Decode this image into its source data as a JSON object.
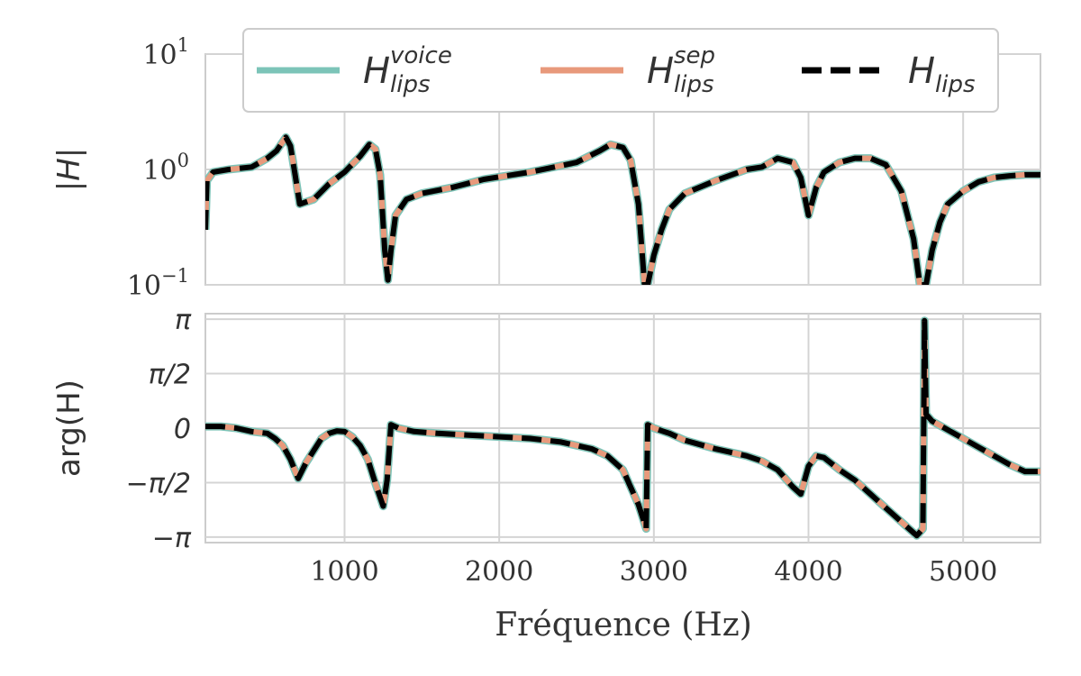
{
  "chart_data": [
    {
      "type": "line",
      "ylabel": "|H|",
      "yscale": "log",
      "xlim": [
        100,
        5500
      ],
      "ylim": [
        0.1,
        10
      ],
      "yticks": [
        0.1,
        1,
        10
      ],
      "yticklabels": [
        {
          "base": "10",
          "exp": "−1"
        },
        {
          "base": "10",
          "exp": "0"
        },
        {
          "base": "10",
          "exp": "1"
        }
      ],
      "xticks": [
        1000,
        2000,
        3000,
        4000,
        5000
      ],
      "grid": true,
      "legend": {
        "placement": "top",
        "entries": [
          {
            "main": "H",
            "sup": "voice",
            "sub": "lips",
            "color": "#7cc4b8",
            "style": "solid"
          },
          {
            "main": "H",
            "sup": "sep",
            "sub": "lips",
            "color": "#e8997b",
            "style": "solid"
          },
          {
            "main": "H",
            "sup": "",
            "sub": "lips",
            "color": "#000000",
            "style": "dashed"
          }
        ]
      },
      "series": [
        {
          "name": "H_lips (model)",
          "color": "#000000",
          "x": [
            100,
            110,
            150,
            250,
            400,
            500,
            560,
            620,
            650,
            680,
            710,
            800,
            900,
            1000,
            1100,
            1160,
            1200,
            1230,
            1260,
            1280,
            1300,
            1330,
            1400,
            1500,
            1700,
            1900,
            2200,
            2500,
            2650,
            2720,
            2800,
            2850,
            2900,
            2940,
            2960,
            3000,
            3050,
            3100,
            3200,
            3400,
            3600,
            3700,
            3800,
            3900,
            3950,
            4000,
            4050,
            4100,
            4200,
            4300,
            4400,
            4500,
            4600,
            4680,
            4720,
            4760,
            4800,
            4850,
            4900,
            5000,
            5100,
            5200,
            5300,
            5400,
            5500
          ],
          "y": [
            0.3,
            0.8,
            0.95,
            1.0,
            1.05,
            1.25,
            1.45,
            1.9,
            1.6,
            0.9,
            0.5,
            0.55,
            0.75,
            0.95,
            1.3,
            1.65,
            1.5,
            0.9,
            0.2,
            0.11,
            0.2,
            0.4,
            0.55,
            0.62,
            0.7,
            0.82,
            0.95,
            1.15,
            1.45,
            1.65,
            1.55,
            1.2,
            0.5,
            0.1,
            0.1,
            0.18,
            0.3,
            0.45,
            0.62,
            0.8,
            1.0,
            1.05,
            1.25,
            1.15,
            0.85,
            0.4,
            0.7,
            0.95,
            1.15,
            1.25,
            1.25,
            1.1,
            0.65,
            0.25,
            0.1,
            0.1,
            0.2,
            0.35,
            0.5,
            0.65,
            0.78,
            0.85,
            0.88,
            0.9,
            0.9
          ]
        }
      ]
    },
    {
      "type": "line",
      "xlabel": "Fréquence (Hz)",
      "ylabel": "arg(H)",
      "xlim": [
        100,
        5500
      ],
      "ylim": [
        -3.3,
        3.3
      ],
      "yticks": [
        -3.14159,
        -1.5708,
        0,
        1.5708,
        3.14159
      ],
      "yticklabels": [
        "−π",
        "−π/2",
        "0",
        "π/2",
        "π"
      ],
      "xticks": [
        1000,
        2000,
        3000,
        4000,
        5000
      ],
      "xticklabels": [
        "1000",
        "2000",
        "3000",
        "4000",
        "5000"
      ],
      "grid": true,
      "series": [
        {
          "name": "H_lips (model)",
          "color": "#000000",
          "x": [
            100,
            200,
            300,
            400,
            500,
            550,
            600,
            650,
            700,
            750,
            800,
            850,
            900,
            950,
            1000,
            1050,
            1100,
            1150,
            1200,
            1250,
            1275,
            1300,
            1350,
            1450,
            1600,
            1800,
            2000,
            2200,
            2400,
            2600,
            2700,
            2800,
            2900,
            2950,
            2960,
            3000,
            3100,
            3200,
            3400,
            3600,
            3700,
            3800,
            3900,
            3950,
            4000,
            4050,
            4100,
            4200,
            4300,
            4400,
            4500,
            4600,
            4700,
            4740,
            4750,
            4760,
            4800,
            4900,
            5000,
            5100,
            5200,
            5300,
            5400,
            5500
          ],
          "y": [
            0.05,
            0.05,
            0.0,
            -0.1,
            -0.15,
            -0.3,
            -0.5,
            -0.9,
            -1.45,
            -1.0,
            -0.65,
            -0.3,
            -0.15,
            -0.08,
            -0.1,
            -0.25,
            -0.5,
            -0.9,
            -1.6,
            -2.25,
            -1.5,
            0.1,
            0.0,
            -0.1,
            -0.15,
            -0.2,
            -0.25,
            -0.3,
            -0.4,
            -0.6,
            -0.8,
            -1.2,
            -2.2,
            -2.9,
            0.1,
            0.0,
            -0.15,
            -0.35,
            -0.6,
            -0.8,
            -0.95,
            -1.2,
            -1.7,
            -1.9,
            -1.1,
            -0.8,
            -0.85,
            -1.2,
            -1.5,
            -1.9,
            -2.3,
            -2.7,
            -3.1,
            -2.9,
            3.1,
            0.4,
            0.2,
            -0.05,
            -0.3,
            -0.55,
            -0.8,
            -1.05,
            -1.25,
            -1.25
          ]
        }
      ]
    }
  ]
}
